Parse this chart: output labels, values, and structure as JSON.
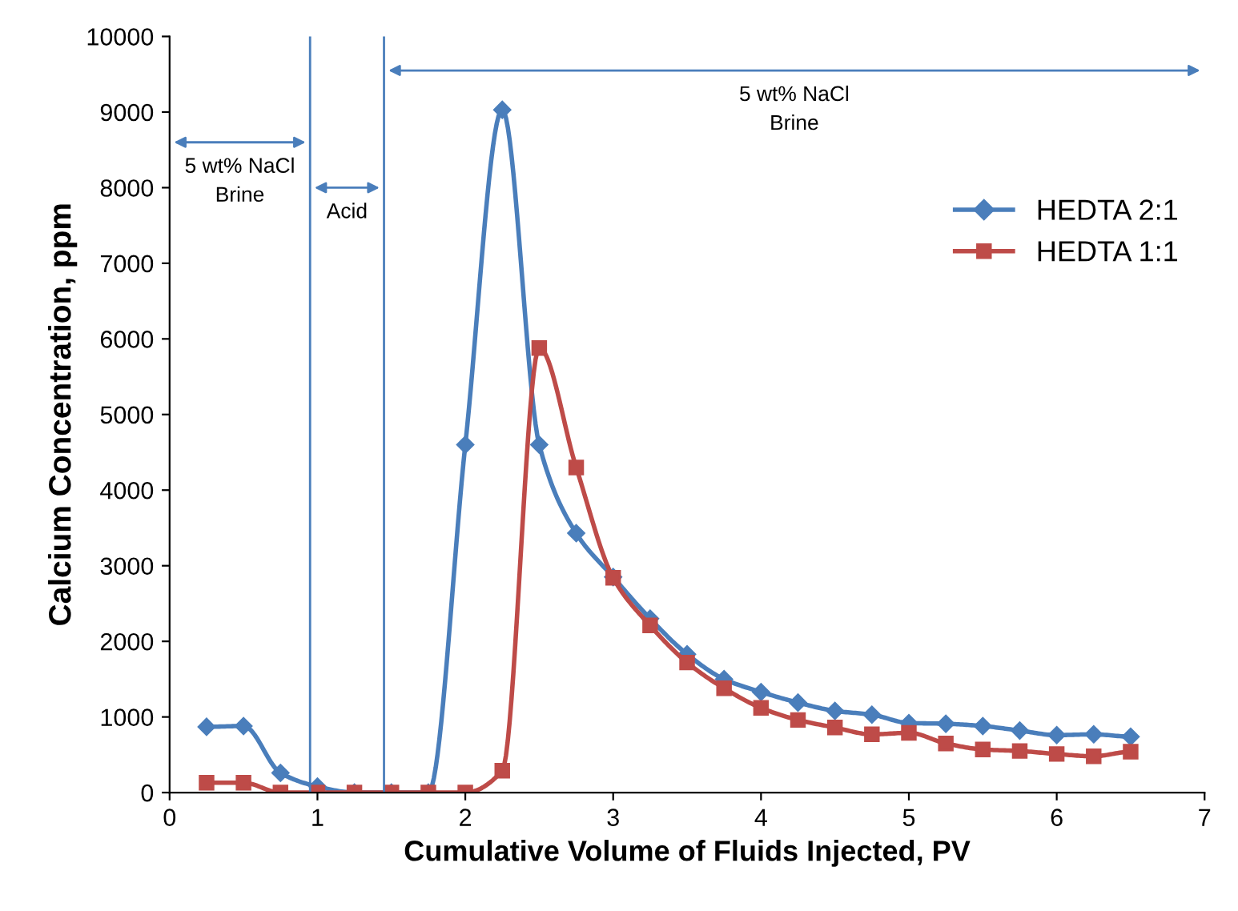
{
  "chart_data": {
    "type": "line",
    "xlabel": "Cumulative Volume of Fluids Injected, PV",
    "ylabel": "Calcium Concentration, ppm",
    "x": [
      0.25,
      0.5,
      0.75,
      1.0,
      1.25,
      1.5,
      1.75,
      2.0,
      2.25,
      2.5,
      2.75,
      3.0,
      3.25,
      3.5,
      3.75,
      4.0,
      4.25,
      4.5,
      4.75,
      5.0,
      5.25,
      5.5,
      5.75,
      6.0,
      6.25,
      6.5
    ],
    "series": [
      {
        "name": "HEDTA 2:1",
        "color": "#4a7ebb",
        "marker": "diamond",
        "values": [
          870,
          880,
          260,
          80,
          0,
          0,
          0,
          4600,
          9030,
          4600,
          3430,
          2850,
          2300,
          1830,
          1500,
          1330,
          1190,
          1080,
          1030,
          920,
          910,
          880,
          820,
          760,
          770,
          740
        ]
      },
      {
        "name": "HEDTA 1:1",
        "color": "#be4b48",
        "marker": "square",
        "values": [
          130,
          130,
          0,
          0,
          0,
          0,
          0,
          0,
          290,
          5880,
          4300,
          2840,
          2210,
          1720,
          1380,
          1120,
          960,
          860,
          770,
          790,
          650,
          570,
          550,
          510,
          480,
          540
        ]
      }
    ],
    "xlim": [
      0,
      7
    ],
    "xticks": [
      0,
      1,
      2,
      3,
      4,
      5,
      6,
      7
    ],
    "ylim": [
      0,
      10000
    ],
    "yticks": [
      0,
      1000,
      2000,
      3000,
      4000,
      5000,
      6000,
      7000,
      8000,
      9000,
      10000
    ],
    "ref_lines": [
      {
        "axis": "x",
        "value": 0.95,
        "color": "#4a7ebb"
      },
      {
        "axis": "x",
        "value": 1.45,
        "color": "#4a7ebb"
      }
    ],
    "annotations": [
      "5 wt% NaCl\nBrine",
      "Acid",
      "5 wt% NaCl\nBrine"
    ],
    "legend": "right",
    "grid": false
  }
}
